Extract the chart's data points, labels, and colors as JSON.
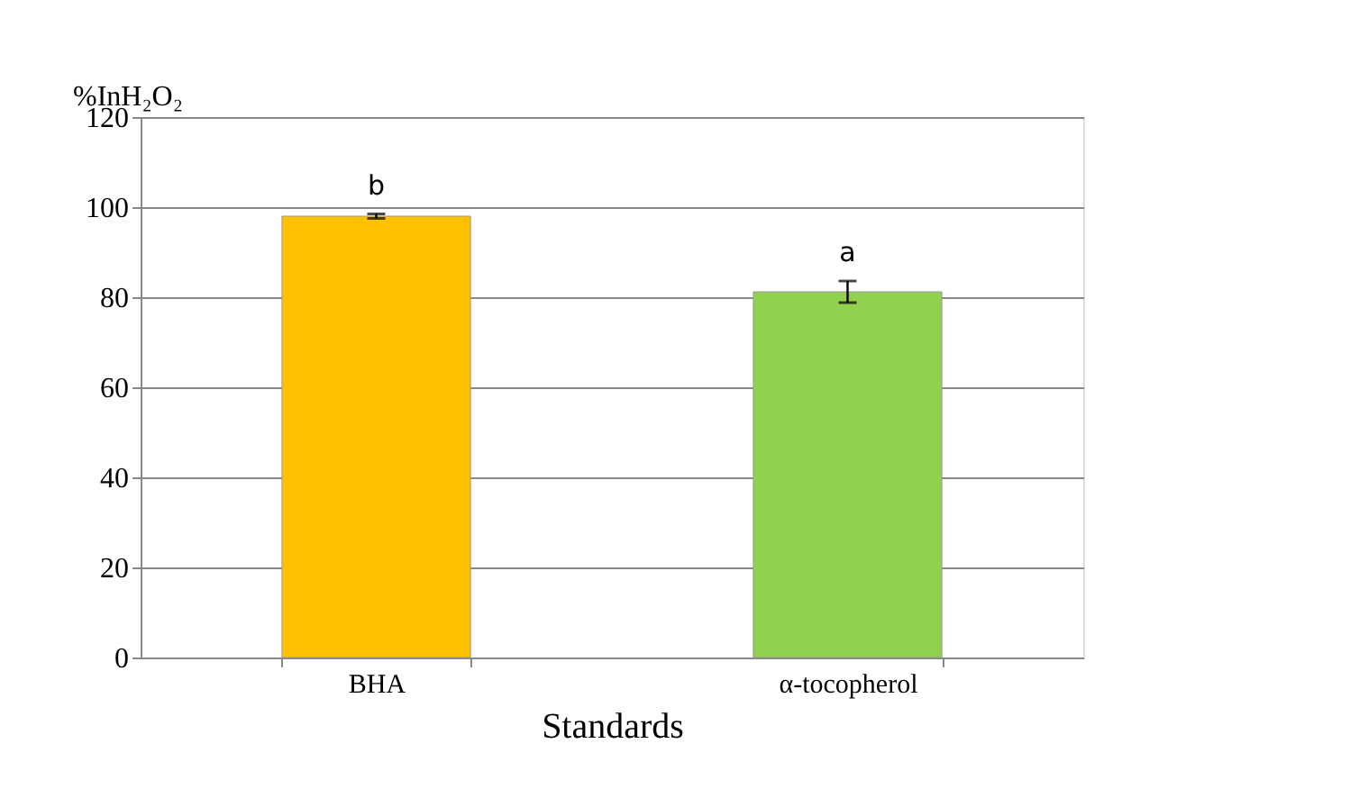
{
  "chart_data": {
    "type": "bar",
    "xlabel": "Standards",
    "ylabel": "%InH₂O₂",
    "categories": [
      "BHA",
      "α-tocopherol"
    ],
    "values": [
      98,
      81.2
    ],
    "colors": [
      "#ffc000",
      "#92d050"
    ],
    "errors": [
      0.5,
      2.4
    ],
    "annotations": [
      "b",
      "a"
    ],
    "ylim": [
      0,
      120
    ],
    "yticks": [
      0,
      20,
      40,
      60,
      80,
      100,
      120
    ],
    "grid": "y"
  }
}
